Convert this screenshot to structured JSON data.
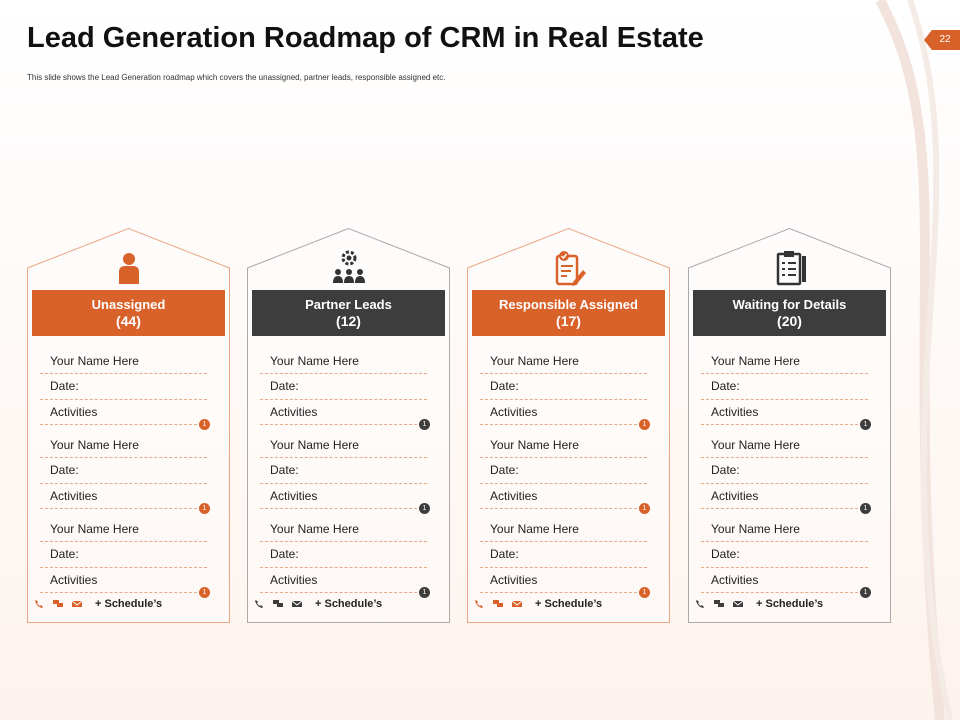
{
  "title": "Lead Generation Roadmap of CRM in Real Estate",
  "subtitle": "This slide shows the Lead Generation roadmap which covers the unassigned, partner leads, responsible assigned etc.",
  "page_number": "22",
  "colors": {
    "accent": "#d9622b",
    "dark": "#3d3d3d"
  },
  "cards": [
    {
      "label": "Unassigned",
      "count": "(44)",
      "icon": "person-icon",
      "theme": "orange"
    },
    {
      "label": "Partner Leads",
      "count": "(12)",
      "icon": "team-gear-icon",
      "theme": "dark"
    },
    {
      "label": "Responsible Assigned",
      "count": "(17)",
      "icon": "clipboard-check-icon",
      "theme": "orange"
    },
    {
      "label": "Waiting for Details",
      "count": "(20)",
      "icon": "checklist-icon",
      "theme": "dark"
    }
  ],
  "entry": {
    "name": "Your Name Here",
    "date": "Date:",
    "activities": "Activities",
    "badge": "1"
  },
  "footer": {
    "schedule": "+ Schedule’s",
    "icons": [
      "phone-icon",
      "chat-icon",
      "mail-icon"
    ]
  }
}
